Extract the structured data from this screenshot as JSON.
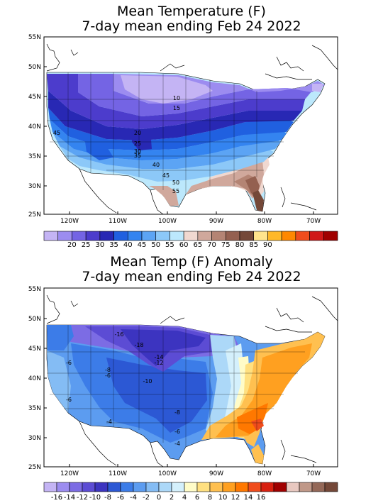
{
  "map1": {
    "title_line1": "Mean Temperature (F)",
    "title_line2": "7-day mean ending Feb 24 2022",
    "lat_labels": [
      "55N",
      "50N",
      "45N",
      "40N",
      "35N",
      "30N",
      "25N"
    ],
    "lon_labels": [
      "120W",
      "110W",
      "100W",
      "90W",
      "80W",
      "70W"
    ],
    "contour_labels": [
      "10",
      "15",
      "20",
      "25",
      "30",
      "35",
      "40",
      "45",
      "50",
      "55",
      "45"
    ],
    "colorbar": {
      "colors": [
        "#c4b4f4",
        "#9c8cf0",
        "#7464e4",
        "#4c3ccc",
        "#2828b4",
        "#2060e0",
        "#3484f0",
        "#5ca4f4",
        "#8cc8f8",
        "#bce8fc",
        "#f0d8d0",
        "#d0a89c",
        "#b48474",
        "#946050",
        "#744838",
        "#ffe48c",
        "#ffb828",
        "#ff8800",
        "#f04c1c",
        "#d01818",
        "#a00000"
      ],
      "labels": [
        "20",
        "25",
        "30",
        "35",
        "40",
        "45",
        "50",
        "55",
        "60",
        "65",
        "70",
        "75",
        "80",
        "85",
        "90"
      ]
    }
  },
  "map2": {
    "title_line1": "Mean Temp (F) Anomaly",
    "title_line2": "7-day mean ending Feb 24 2022",
    "lat_labels": [
      "55N",
      "50N",
      "45N",
      "40N",
      "35N",
      "30N",
      "25N"
    ],
    "lon_labels": [
      "120W",
      "110W",
      "100W",
      "90W",
      "80W",
      "70W"
    ],
    "contour_labels": [
      "-16",
      "-18",
      "-14",
      "-12",
      "-8",
      "-6",
      "-6",
      "-10",
      "-8",
      "-6",
      "-4",
      "-4",
      "-6"
    ],
    "colorbar": {
      "colors": [
        "#c4b4f4",
        "#9c8cf0",
        "#7c6ce4",
        "#5c4cd4",
        "#3c34c0",
        "#2c58d4",
        "#3c7ce8",
        "#5c9cf0",
        "#84bcf4",
        "#acd8f8",
        "#d4f0fc",
        "#fffcc8",
        "#ffe080",
        "#ffc050",
        "#ffa020",
        "#ff7800",
        "#f04c1c",
        "#d82010",
        "#a00000",
        "#e8c8c0",
        "#c09888",
        "#946858",
        "#744838"
      ],
      "labels": [
        "-16",
        "-14",
        "-12",
        "-10",
        "-8",
        "-6",
        "-4",
        "-2",
        "0",
        "2",
        "4",
        "6",
        "8",
        "10",
        "12",
        "14",
        "16"
      ]
    }
  }
}
